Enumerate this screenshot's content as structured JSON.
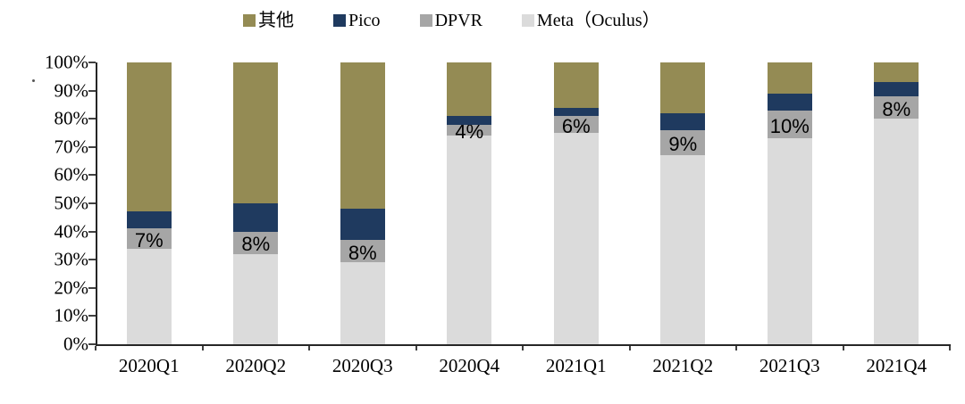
{
  "legend": {
    "items": [
      {
        "label": "其他",
        "color": "#948B54"
      },
      {
        "label": "Pico",
        "color": "#1F3A5F"
      },
      {
        "label": "DPVR",
        "color": "#A6A6A6"
      },
      {
        "label": "Meta（Oculus）",
        "color": "#DBDBDB"
      }
    ]
  },
  "y_axis": {
    "min": 0,
    "max": 100,
    "step": 10,
    "tick_labels": [
      "100%",
      "90%",
      "80%",
      "70%",
      "60%",
      "50%",
      "40%",
      "30%",
      "20%",
      "10%",
      "0%"
    ]
  },
  "x_axis": {
    "categories": [
      "2020Q1",
      "2020Q2",
      "2020Q3",
      "2020Q4",
      "2021Q1",
      "2021Q2",
      "2021Q3",
      "2021Q4"
    ]
  },
  "annotations": {
    "stray_mark": "."
  },
  "chart_data": {
    "type": "bar",
    "subtype": "stacked-100-percent",
    "title": "",
    "xlabel": "",
    "ylabel": "",
    "ylim": [
      0,
      100
    ],
    "grid": false,
    "legend_position": "top-center",
    "categories": [
      "2020Q1",
      "2020Q2",
      "2020Q3",
      "2020Q4",
      "2021Q1",
      "2021Q2",
      "2021Q3",
      "2021Q4"
    ],
    "series": [
      {
        "name": "其他",
        "color": "#948B54",
        "values": [
          53,
          50,
          52,
          19,
          16,
          18,
          11,
          7
        ]
      },
      {
        "name": "Pico",
        "color": "#1F3A5F",
        "values": [
          6,
          10,
          11,
          3,
          3,
          6,
          6,
          5
        ]
      },
      {
        "name": "DPVR",
        "color": "#A6A6A6",
        "values": [
          7,
          8,
          8,
          4,
          6,
          9,
          10,
          8
        ],
        "data_labels": true,
        "label_suffix": "%"
      },
      {
        "name": "Meta（Oculus）",
        "color": "#DBDBDB",
        "values": [
          34,
          32,
          29,
          74,
          75,
          67,
          73,
          80
        ]
      }
    ],
    "data_label_texts": [
      "7%",
      "8%",
      "8%",
      "4%",
      "6%",
      "9%",
      "10%",
      "8%"
    ]
  }
}
